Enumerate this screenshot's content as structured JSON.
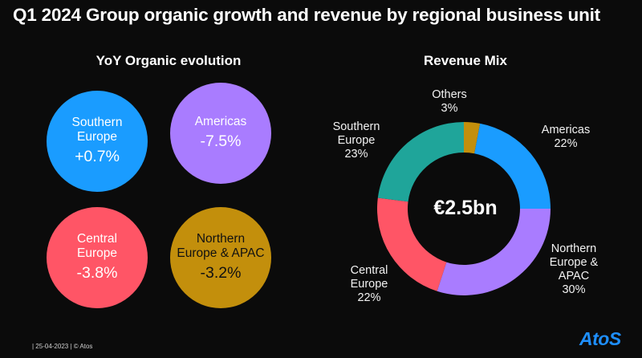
{
  "title": "Q1 2024 Group organic growth and revenue by regional business unit",
  "left_section": {
    "title": "YoY Organic evolution",
    "bubbles": [
      {
        "name_line1": "Southern",
        "name_line2": "Europe",
        "value": "+0.7%",
        "color": "#1a9cff"
      },
      {
        "name_line1": "Americas",
        "name_line2": "",
        "value": "-7.5%",
        "color": "#a97cff"
      },
      {
        "name_line1": "Central",
        "name_line2": "Europe",
        "value": "-3.8%",
        "color": "#ff5566"
      },
      {
        "name_line1": "Northern",
        "name_line2": "Europe & APAC",
        "value": "-3.2%",
        "color": "#c38f0c"
      }
    ]
  },
  "right_section": {
    "title": "Revenue Mix",
    "center_label": "€2.5bn"
  },
  "chart_data": {
    "type": "pie",
    "title": "Revenue Mix",
    "total_label": "€2.5bn",
    "categories": [
      "Others",
      "Americas",
      "Northern Europe & APAC",
      "Central Europe",
      "Southern Europe"
    ],
    "values": [
      3,
      22,
      30,
      22,
      23
    ],
    "unit": "%",
    "colors": [
      "#c38f0c",
      "#1a9cff",
      "#a97cff",
      "#ff5566",
      "#1fa59a"
    ],
    "labels": [
      {
        "line1": "Others",
        "line2": "",
        "line3": "",
        "pct": "3%"
      },
      {
        "line1": "Americas",
        "line2": "",
        "line3": "",
        "pct": "22%"
      },
      {
        "line1": "Northern",
        "line2": "Europe &",
        "line3": "APAC",
        "pct": "30%"
      },
      {
        "line1": "Central",
        "line2": "Europe",
        "line3": "",
        "pct": "22%"
      },
      {
        "line1": "Southern",
        "line2": "Europe",
        "line3": "",
        "pct": "23%"
      }
    ]
  },
  "footer": {
    "text": "| 25-04-2023 | © Atos",
    "logo": "AtoS"
  }
}
